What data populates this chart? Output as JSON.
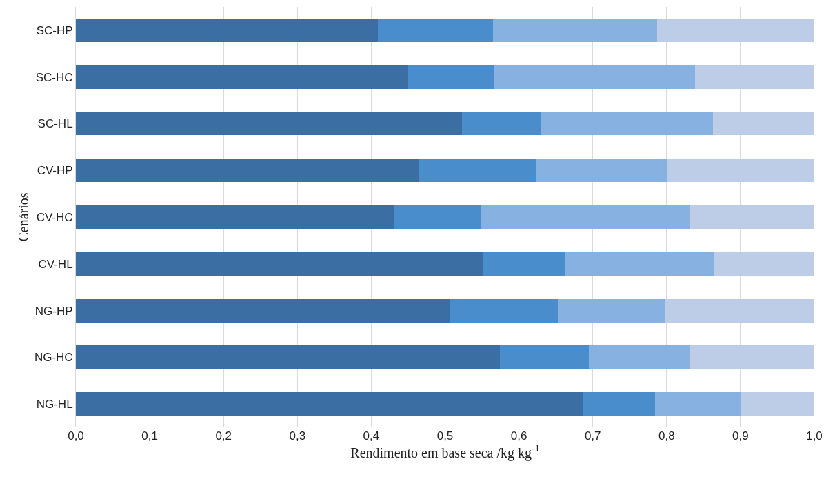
{
  "chart_data": {
    "type": "bar",
    "orientation": "horizontal",
    "stacked": true,
    "xlabel": "Rendimento em base seca /kg kg$^{-1}$",
    "ylabel": "Cenários",
    "categories": [
      "SC-HP",
      "SC-HC",
      "SC-HL",
      "CV-HP",
      "CV-HC",
      "CV-HL",
      "NG-HP",
      "NG-HC",
      "NG-HL"
    ],
    "series": [
      {
        "color": "#3b6fa3",
        "values": [
          0.409,
          0.45,
          0.523,
          0.465,
          0.431,
          0.551,
          0.506,
          0.574,
          0.687
        ]
      },
      {
        "color": "#4a8dcc",
        "values": [
          0.156,
          0.117,
          0.107,
          0.159,
          0.117,
          0.112,
          0.147,
          0.121,
          0.097
        ]
      },
      {
        "color": "#87b1e0",
        "values": [
          0.222,
          0.271,
          0.233,
          0.176,
          0.283,
          0.202,
          0.144,
          0.137,
          0.117
        ]
      },
      {
        "color": "#bdcde8",
        "values": [
          0.213,
          0.162,
          0.137,
          0.2,
          0.169,
          0.135,
          0.203,
          0.168,
          0.099
        ]
      }
    ],
    "xlim": [
      0,
      1
    ],
    "xticks": [
      {
        "value": 0,
        "label": "0,0"
      },
      {
        "value": 0.1,
        "label": "0,1"
      },
      {
        "value": 0.2,
        "label": "0,2"
      },
      {
        "value": 0.3,
        "label": "0,3"
      },
      {
        "value": 0.4,
        "label": "0,4"
      },
      {
        "value": 0.5,
        "label": "0,5"
      },
      {
        "value": 0.6,
        "label": "0,6"
      },
      {
        "value": 0.7,
        "label": "0,7"
      },
      {
        "value": 0.8,
        "label": "0,8"
      },
      {
        "value": 0.9,
        "label": "0,9"
      },
      {
        "value": 1,
        "label": "1,0"
      }
    ],
    "grid": "x"
  }
}
